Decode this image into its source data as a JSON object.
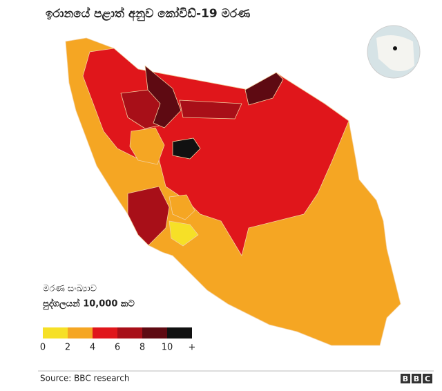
{
  "title": "ඉරානයේ පළාත් අනුව කෝවිඩ්-19 මරණ",
  "legend": {
    "title": "මරණ සංඛ්‍යාව",
    "subtitle": "පුද්ගලයන් 10,000 කට",
    "labels": [
      0,
      2,
      4,
      6,
      8,
      10,
      "+"
    ],
    "colors": [
      "#f6e027",
      "#f5a623",
      "#e0161b",
      "#a80f18",
      "#5e0a12",
      "#111111"
    ]
  },
  "source": "Source: BBC research",
  "logo": [
    "B",
    "B",
    "C"
  ]
}
